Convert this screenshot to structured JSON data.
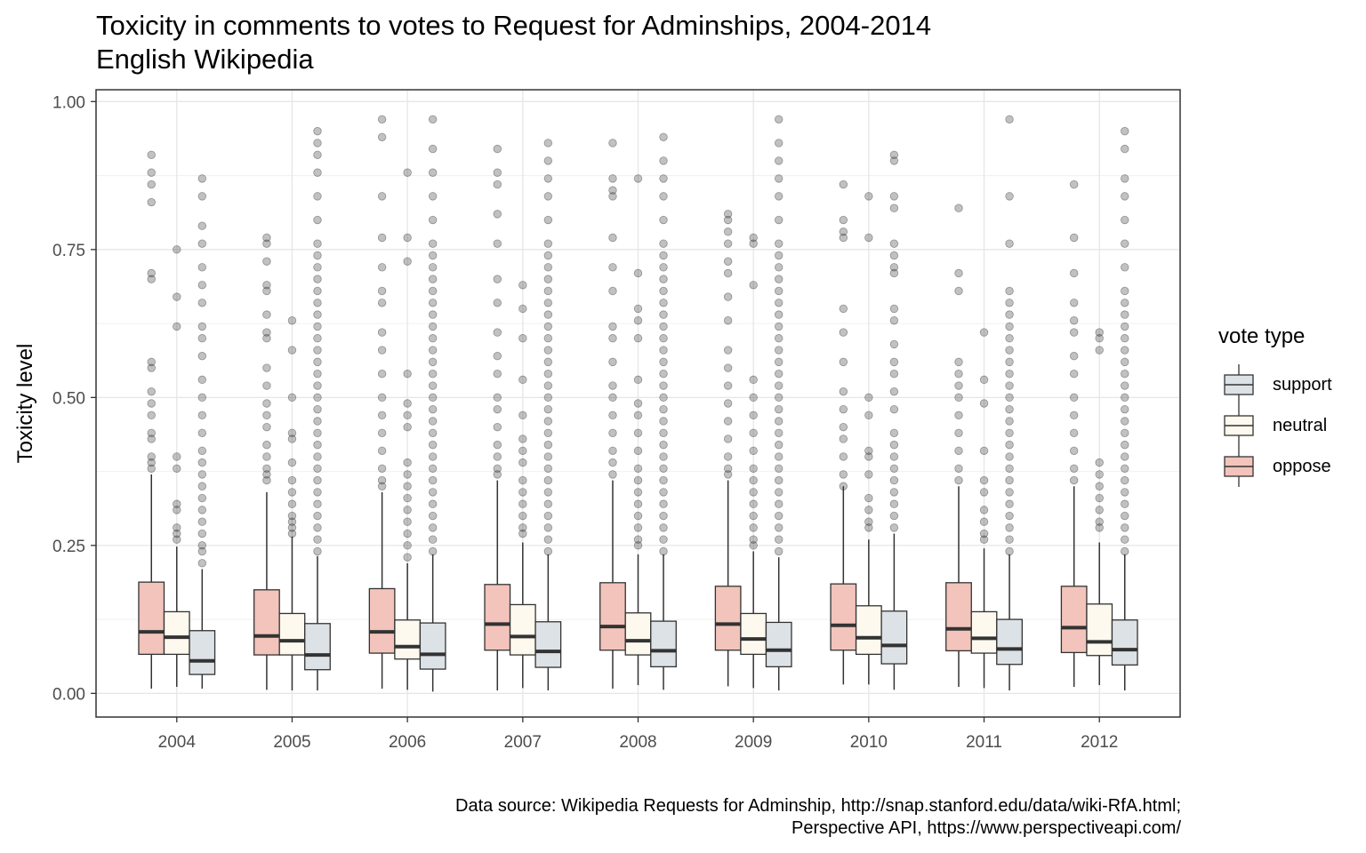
{
  "title": "Toxicity in comments to votes to Request for Adminships, 2004-2014",
  "subtitle": "English Wikipedia",
  "caption_line1": "Data source: Wikipedia Requests for Adminship, http://snap.stanford.edu/data/wiki-RfA.html;",
  "caption_line2": "Perspective API, https://www.perspectiveapi.com/",
  "legend_title": "vote type",
  "colors": {
    "oppose": "#f2c4bb",
    "neutral": "#fdf9ee",
    "support": "#dde2e6",
    "outlier": "#333333",
    "line": "#333333"
  },
  "chart_data": {
    "type": "boxplot",
    "title": "Toxicity in comments to votes to Request for Adminships, 2004-2014",
    "subtitle": "English Wikipedia",
    "xlabel": "",
    "ylabel": "Toxicity level",
    "ylim": [
      -0.04,
      1.02
    ],
    "yticks": [
      "0.00",
      "0.25",
      "0.50",
      "0.75",
      "1.00"
    ],
    "ytick_values": [
      0,
      0.25,
      0.5,
      0.75,
      1.0
    ],
    "grid": true,
    "legend": "right",
    "categories": [
      "2004",
      "2005",
      "2006",
      "2007",
      "2008",
      "2009",
      "2010",
      "2011",
      "2012"
    ],
    "series_order": [
      "oppose",
      "neutral",
      "support"
    ],
    "legend_order": [
      "support",
      "neutral",
      "oppose"
    ],
    "series": [
      {
        "name": "oppose",
        "boxes": [
          {
            "q1": 0.066,
            "median": 0.104,
            "q3": 0.188,
            "lo": 0.008,
            "hi": 0.37
          },
          {
            "q1": 0.065,
            "median": 0.097,
            "q3": 0.175,
            "lo": 0.006,
            "hi": 0.34
          },
          {
            "q1": 0.068,
            "median": 0.104,
            "q3": 0.177,
            "lo": 0.008,
            "hi": 0.34
          },
          {
            "q1": 0.073,
            "median": 0.117,
            "q3": 0.184,
            "lo": 0.005,
            "hi": 0.36
          },
          {
            "q1": 0.073,
            "median": 0.113,
            "q3": 0.187,
            "lo": 0.008,
            "hi": 0.36
          },
          {
            "q1": 0.073,
            "median": 0.117,
            "q3": 0.181,
            "lo": 0.012,
            "hi": 0.36
          },
          {
            "q1": 0.073,
            "median": 0.115,
            "q3": 0.185,
            "lo": 0.015,
            "hi": 0.35
          },
          {
            "q1": 0.072,
            "median": 0.109,
            "q3": 0.187,
            "lo": 0.011,
            "hi": 0.35
          },
          {
            "q1": 0.069,
            "median": 0.111,
            "q3": 0.181,
            "lo": 0.011,
            "hi": 0.35
          }
        ],
        "outliers": [
          [
            0.38,
            0.39,
            0.4,
            0.43,
            0.44,
            0.47,
            0.49,
            0.51,
            0.55,
            0.56,
            0.7,
            0.71,
            0.83,
            0.86,
            0.88,
            0.91
          ],
          [
            0.36,
            0.37,
            0.38,
            0.4,
            0.42,
            0.45,
            0.47,
            0.49,
            0.52,
            0.55,
            0.6,
            0.61,
            0.64,
            0.68,
            0.69,
            0.73,
            0.76,
            0.77
          ],
          [
            0.35,
            0.36,
            0.38,
            0.41,
            0.44,
            0.47,
            0.5,
            0.54,
            0.58,
            0.61,
            0.66,
            0.68,
            0.72,
            0.77,
            0.84,
            0.94,
            0.97
          ],
          [
            0.37,
            0.38,
            0.4,
            0.42,
            0.45,
            0.48,
            0.5,
            0.54,
            0.57,
            0.61,
            0.66,
            0.7,
            0.76,
            0.81,
            0.86,
            0.88,
            0.92
          ],
          [
            0.37,
            0.39,
            0.41,
            0.44,
            0.47,
            0.5,
            0.52,
            0.56,
            0.6,
            0.62,
            0.68,
            0.72,
            0.77,
            0.84,
            0.85,
            0.87,
            0.93
          ],
          [
            0.37,
            0.38,
            0.4,
            0.43,
            0.46,
            0.49,
            0.52,
            0.55,
            0.58,
            0.63,
            0.67,
            0.71,
            0.73,
            0.76,
            0.78,
            0.8,
            0.81
          ],
          [
            0.35,
            0.37,
            0.4,
            0.43,
            0.45,
            0.48,
            0.51,
            0.56,
            0.61,
            0.65,
            0.77,
            0.78,
            0.8,
            0.86
          ],
          [
            0.36,
            0.38,
            0.41,
            0.44,
            0.47,
            0.5,
            0.52,
            0.54,
            0.56,
            0.68,
            0.71,
            0.82
          ],
          [
            0.36,
            0.38,
            0.41,
            0.44,
            0.47,
            0.5,
            0.54,
            0.57,
            0.61,
            0.63,
            0.66,
            0.71,
            0.77,
            0.86
          ]
        ]
      },
      {
        "name": "neutral",
        "boxes": [
          {
            "q1": 0.066,
            "median": 0.095,
            "q3": 0.138,
            "lo": 0.011,
            "hi": 0.248
          },
          {
            "q1": 0.065,
            "median": 0.089,
            "q3": 0.135,
            "lo": 0.005,
            "hi": 0.265
          },
          {
            "q1": 0.058,
            "median": 0.079,
            "q3": 0.124,
            "lo": 0.006,
            "hi": 0.22
          },
          {
            "q1": 0.065,
            "median": 0.096,
            "q3": 0.15,
            "lo": 0.009,
            "hi": 0.255
          },
          {
            "q1": 0.065,
            "median": 0.089,
            "q3": 0.136,
            "lo": 0.014,
            "hi": 0.235
          },
          {
            "q1": 0.066,
            "median": 0.092,
            "q3": 0.135,
            "lo": 0.009,
            "hi": 0.24
          },
          {
            "q1": 0.066,
            "median": 0.094,
            "q3": 0.148,
            "lo": 0.015,
            "hi": 0.26
          },
          {
            "q1": 0.068,
            "median": 0.093,
            "q3": 0.138,
            "lo": 0.009,
            "hi": 0.245
          },
          {
            "q1": 0.064,
            "median": 0.087,
            "q3": 0.151,
            "lo": 0.014,
            "hi": 0.255
          }
        ],
        "outliers": [
          [
            0.26,
            0.27,
            0.28,
            0.31,
            0.32,
            0.38,
            0.4,
            0.62,
            0.67,
            0.75
          ],
          [
            0.27,
            0.28,
            0.29,
            0.3,
            0.32,
            0.34,
            0.36,
            0.39,
            0.43,
            0.44,
            0.5,
            0.58,
            0.63
          ],
          [
            0.23,
            0.25,
            0.27,
            0.29,
            0.31,
            0.33,
            0.35,
            0.37,
            0.39,
            0.45,
            0.47,
            0.49,
            0.54,
            0.73,
            0.77,
            0.88
          ],
          [
            0.27,
            0.28,
            0.3,
            0.32,
            0.34,
            0.36,
            0.39,
            0.41,
            0.43,
            0.47,
            0.53,
            0.6,
            0.65,
            0.69
          ],
          [
            0.25,
            0.26,
            0.28,
            0.3,
            0.32,
            0.34,
            0.36,
            0.38,
            0.41,
            0.44,
            0.47,
            0.49,
            0.53,
            0.6,
            0.63,
            0.65,
            0.71,
            0.87
          ],
          [
            0.25,
            0.26,
            0.28,
            0.3,
            0.32,
            0.34,
            0.36,
            0.38,
            0.41,
            0.44,
            0.47,
            0.5,
            0.53,
            0.69,
            0.76,
            0.77
          ],
          [
            0.28,
            0.29,
            0.31,
            0.33,
            0.37,
            0.4,
            0.41,
            0.47,
            0.5,
            0.77,
            0.84
          ],
          [
            0.26,
            0.27,
            0.29,
            0.31,
            0.34,
            0.36,
            0.41,
            0.49,
            0.53,
            0.61
          ],
          [
            0.28,
            0.29,
            0.31,
            0.33,
            0.35,
            0.37,
            0.39,
            0.58,
            0.6,
            0.61
          ]
        ]
      },
      {
        "name": "support",
        "boxes": [
          {
            "q1": 0.032,
            "median": 0.055,
            "q3": 0.106,
            "lo": 0.008,
            "hi": 0.21
          },
          {
            "q1": 0.04,
            "median": 0.065,
            "q3": 0.118,
            "lo": 0.005,
            "hi": 0.232
          },
          {
            "q1": 0.041,
            "median": 0.066,
            "q3": 0.119,
            "lo": 0.003,
            "hi": 0.235
          },
          {
            "q1": 0.044,
            "median": 0.071,
            "q3": 0.121,
            "lo": 0.005,
            "hi": 0.235
          },
          {
            "q1": 0.045,
            "median": 0.072,
            "q3": 0.122,
            "lo": 0.006,
            "hi": 0.235
          },
          {
            "q1": 0.045,
            "median": 0.073,
            "q3": 0.12,
            "lo": 0.005,
            "hi": 0.23
          },
          {
            "q1": 0.05,
            "median": 0.081,
            "q3": 0.139,
            "lo": 0.006,
            "hi": 0.27
          },
          {
            "q1": 0.049,
            "median": 0.075,
            "q3": 0.125,
            "lo": 0.005,
            "hi": 0.235
          },
          {
            "q1": 0.048,
            "median": 0.074,
            "q3": 0.124,
            "lo": 0.005,
            "hi": 0.235
          }
        ],
        "outliers": [
          [
            0.22,
            0.24,
            0.25,
            0.27,
            0.29,
            0.31,
            0.33,
            0.35,
            0.37,
            0.39,
            0.41,
            0.44,
            0.47,
            0.5,
            0.53,
            0.57,
            0.6,
            0.62,
            0.66,
            0.69,
            0.72,
            0.76,
            0.79,
            0.84,
            0.87
          ],
          [
            0.24,
            0.26,
            0.28,
            0.3,
            0.32,
            0.34,
            0.36,
            0.38,
            0.4,
            0.42,
            0.44,
            0.46,
            0.48,
            0.5,
            0.52,
            0.54,
            0.56,
            0.58,
            0.6,
            0.62,
            0.64,
            0.66,
            0.68,
            0.7,
            0.72,
            0.74,
            0.76,
            0.8,
            0.84,
            0.88,
            0.91,
            0.93,
            0.95
          ],
          [
            0.24,
            0.26,
            0.28,
            0.3,
            0.32,
            0.34,
            0.36,
            0.38,
            0.4,
            0.42,
            0.44,
            0.46,
            0.48,
            0.5,
            0.52,
            0.54,
            0.56,
            0.58,
            0.6,
            0.62,
            0.64,
            0.66,
            0.68,
            0.7,
            0.72,
            0.74,
            0.76,
            0.8,
            0.84,
            0.88,
            0.92,
            0.97
          ],
          [
            0.24,
            0.26,
            0.28,
            0.3,
            0.32,
            0.34,
            0.36,
            0.38,
            0.4,
            0.42,
            0.44,
            0.46,
            0.48,
            0.5,
            0.52,
            0.54,
            0.56,
            0.58,
            0.6,
            0.62,
            0.64,
            0.66,
            0.68,
            0.7,
            0.72,
            0.74,
            0.76,
            0.8,
            0.84,
            0.87,
            0.9,
            0.93
          ],
          [
            0.24,
            0.26,
            0.28,
            0.3,
            0.32,
            0.34,
            0.36,
            0.38,
            0.4,
            0.42,
            0.44,
            0.46,
            0.48,
            0.5,
            0.52,
            0.54,
            0.56,
            0.58,
            0.6,
            0.62,
            0.64,
            0.66,
            0.68,
            0.7,
            0.72,
            0.74,
            0.76,
            0.8,
            0.84,
            0.87,
            0.9,
            0.94
          ],
          [
            0.24,
            0.26,
            0.28,
            0.3,
            0.32,
            0.34,
            0.36,
            0.38,
            0.4,
            0.42,
            0.44,
            0.46,
            0.48,
            0.5,
            0.52,
            0.54,
            0.56,
            0.58,
            0.6,
            0.62,
            0.64,
            0.66,
            0.68,
            0.7,
            0.72,
            0.74,
            0.76,
            0.8,
            0.84,
            0.87,
            0.9,
            0.93,
            0.97
          ],
          [
            0.28,
            0.3,
            0.32,
            0.34,
            0.36,
            0.38,
            0.4,
            0.42,
            0.44,
            0.48,
            0.51,
            0.54,
            0.56,
            0.59,
            0.63,
            0.65,
            0.71,
            0.72,
            0.74,
            0.76,
            0.82,
            0.84,
            0.9,
            0.91
          ],
          [
            0.24,
            0.26,
            0.28,
            0.3,
            0.32,
            0.34,
            0.36,
            0.38,
            0.4,
            0.42,
            0.44,
            0.46,
            0.48,
            0.5,
            0.52,
            0.54,
            0.56,
            0.58,
            0.6,
            0.62,
            0.64,
            0.66,
            0.68,
            0.76,
            0.84,
            0.97
          ],
          [
            0.24,
            0.26,
            0.28,
            0.3,
            0.32,
            0.34,
            0.36,
            0.38,
            0.4,
            0.42,
            0.44,
            0.46,
            0.48,
            0.5,
            0.52,
            0.54,
            0.56,
            0.58,
            0.6,
            0.62,
            0.64,
            0.66,
            0.68,
            0.72,
            0.76,
            0.8,
            0.84,
            0.87,
            0.92,
            0.95
          ]
        ]
      }
    ]
  }
}
